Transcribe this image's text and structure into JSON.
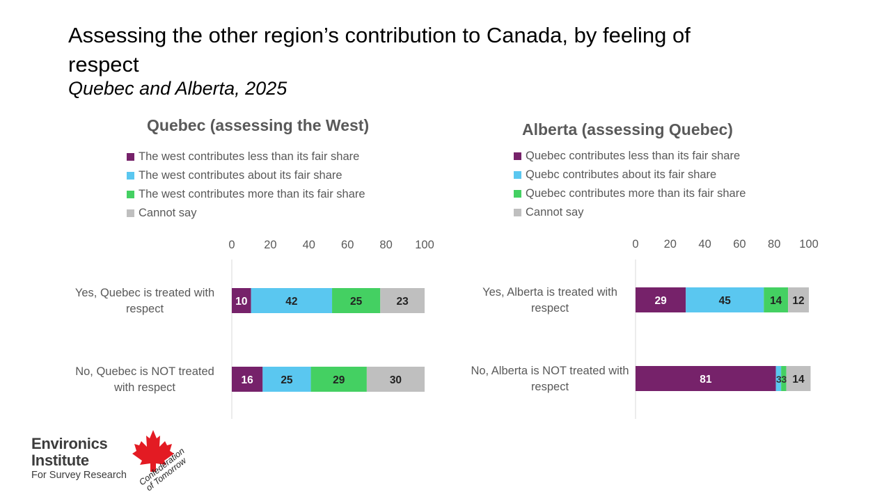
{
  "title": "Assessing the other region’s contribution to Canada, by feeling of respect",
  "subtitle": "Quebec and Alberta, 2025",
  "colors": {
    "less": "#76226a",
    "about": "#5ac7f0",
    "more": "#44d062",
    "cannot": "#bfbfbf"
  },
  "chart_data": [
    {
      "type": "bar",
      "orientation": "horizontal-stacked",
      "title": "Quebec (assessing the West)",
      "legend": [
        "The west contributes less than its fair share",
        "The west contributes about its fair share",
        "The west contributes more than its fair share",
        "Cannot say"
      ],
      "categories": [
        "Yes, Quebec is treated with respect",
        "No, Quebec is NOT treated with respect"
      ],
      "category_lines": [
        [
          "Yes, Quebec is treated with",
          "respect"
        ],
        [
          "No, Quebec is NOT treated",
          "with respect"
        ]
      ],
      "series": [
        {
          "name": "The west contributes less than its fair share",
          "values": [
            10,
            16
          ]
        },
        {
          "name": "The west contributes about its fair share",
          "values": [
            42,
            25
          ]
        },
        {
          "name": "The west contributes more than its fair share",
          "values": [
            25,
            29
          ]
        },
        {
          "name": "Cannot say",
          "values": [
            23,
            30
          ]
        }
      ],
      "xlim": [
        0,
        100
      ],
      "ticks": [
        0,
        20,
        40,
        60,
        80,
        100
      ]
    },
    {
      "type": "bar",
      "orientation": "horizontal-stacked",
      "title": "Alberta (assessing Quebec)",
      "legend": [
        "Quebec contributes less than its fair share",
        "Quebc contributes about its fair share",
        "Quebec contributes more than its fair share",
        "Cannot say"
      ],
      "categories": [
        "Yes, Alberta is treated with respect",
        "No, Alberta is NOT treated with respect"
      ],
      "category_lines": [
        [
          "Yes, Alberta is treated with",
          "respect"
        ],
        [
          "No, Alberta is NOT treated with",
          "respect"
        ]
      ],
      "series": [
        {
          "name": "Quebec contributes less than its fair share",
          "values": [
            29,
            81
          ]
        },
        {
          "name": "Quebc contributes about its fair share",
          "values": [
            45,
            3
          ]
        },
        {
          "name": "Quebec contributes more than its fair share",
          "values": [
            14,
            3
          ]
        },
        {
          "name": "Cannot say",
          "values": [
            12,
            14
          ]
        }
      ],
      "xlim": [
        0,
        100
      ],
      "ticks": [
        0,
        20,
        40,
        60,
        80,
        100
      ]
    }
  ],
  "logos": {
    "environics_line1": "Environics",
    "environics_line2": "Institute",
    "environics_line3": "For Survey Research",
    "confederation_line1": "Confederation",
    "confederation_line2": "of Tomorrow"
  }
}
